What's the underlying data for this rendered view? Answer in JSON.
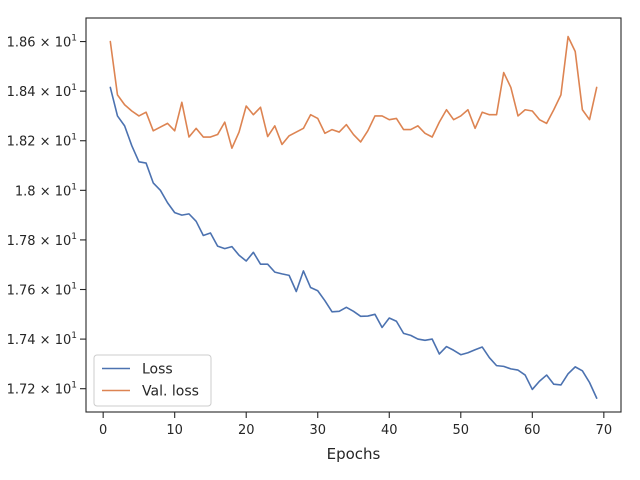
{
  "chart_data": {
    "type": "line",
    "title": "",
    "xlabel": "Epochs",
    "ylabel": "",
    "xlim": [
      -2.4,
      72.4
    ],
    "ylim": [
      17.106,
      18.695
    ],
    "x_ticks": [
      0,
      10,
      20,
      30,
      40,
      50,
      60,
      70
    ],
    "y_ticks": [
      {
        "value": 17.2,
        "label_base": "1.72 × 10",
        "label_exp": "1"
      },
      {
        "value": 17.4,
        "label_base": "1.74 × 10",
        "label_exp": "1"
      },
      {
        "value": 17.6,
        "label_base": "1.76 × 10",
        "label_exp": "1"
      },
      {
        "value": 17.8,
        "label_base": "1.78 × 10",
        "label_exp": "1"
      },
      {
        "value": 18.0,
        "label_base": "1.8 × 10",
        "label_exp": "1"
      },
      {
        "value": 18.2,
        "label_base": "1.82 × 10",
        "label_exp": "1"
      },
      {
        "value": 18.4,
        "label_base": "1.84 × 10",
        "label_exp": "1"
      },
      {
        "value": 18.6,
        "label_base": "1.86 × 10",
        "label_exp": "1"
      }
    ],
    "legend_position": "lower-left",
    "x": [
      1,
      2,
      3,
      4,
      5,
      6,
      7,
      8,
      9,
      10,
      11,
      12,
      13,
      14,
      15,
      16,
      17,
      18,
      19,
      20,
      21,
      22,
      23,
      24,
      25,
      26,
      27,
      28,
      29,
      30,
      31,
      32,
      33,
      34,
      35,
      36,
      37,
      38,
      39,
      40,
      41,
      42,
      43,
      44,
      45,
      46,
      47,
      48,
      49,
      50,
      51,
      52,
      53,
      54,
      55,
      56,
      57,
      58,
      59,
      60,
      61,
      62,
      63,
      64,
      65,
      66,
      67,
      68,
      69
    ],
    "series": [
      {
        "name": "Loss",
        "color": "#4c72b0",
        "values": [
          18.415,
          18.3,
          18.26,
          18.18,
          18.115,
          18.11,
          18.03,
          18.0,
          17.95,
          17.91,
          17.9,
          17.905,
          17.875,
          17.818,
          17.828,
          17.775,
          17.765,
          17.773,
          17.738,
          17.715,
          17.75,
          17.702,
          17.702,
          17.67,
          17.663,
          17.657,
          17.592,
          17.675,
          17.608,
          17.595,
          17.555,
          17.51,
          17.512,
          17.528,
          17.512,
          17.492,
          17.493,
          17.5,
          17.447,
          17.485,
          17.472,
          17.423,
          17.415,
          17.4,
          17.395,
          17.4,
          17.34,
          17.37,
          17.355,
          17.337,
          17.345,
          17.357,
          17.368,
          17.325,
          17.293,
          17.29,
          17.28,
          17.275,
          17.255,
          17.197,
          17.23,
          17.255,
          17.218,
          17.215,
          17.26,
          17.288,
          17.272,
          17.225,
          17.162
        ]
      },
      {
        "name": "Val. loss",
        "color": "#dd8452",
        "values": [
          18.6,
          18.385,
          18.345,
          18.32,
          18.3,
          18.315,
          18.24,
          18.255,
          18.27,
          18.24,
          18.355,
          18.215,
          18.25,
          18.215,
          18.215,
          18.225,
          18.275,
          18.17,
          18.235,
          18.34,
          18.305,
          18.335,
          18.217,
          18.26,
          18.185,
          18.22,
          18.235,
          18.25,
          18.305,
          18.29,
          18.23,
          18.245,
          18.235,
          18.265,
          18.225,
          18.195,
          18.24,
          18.3,
          18.3,
          18.285,
          18.29,
          18.245,
          18.245,
          18.26,
          18.23,
          18.215,
          18.275,
          18.325,
          18.285,
          18.3,
          18.325,
          18.25,
          18.315,
          18.305,
          18.305,
          18.475,
          18.415,
          18.3,
          18.325,
          18.32,
          18.285,
          18.27,
          18.325,
          18.385,
          18.62,
          18.56,
          18.325,
          18.285,
          18.415
        ]
      }
    ]
  }
}
